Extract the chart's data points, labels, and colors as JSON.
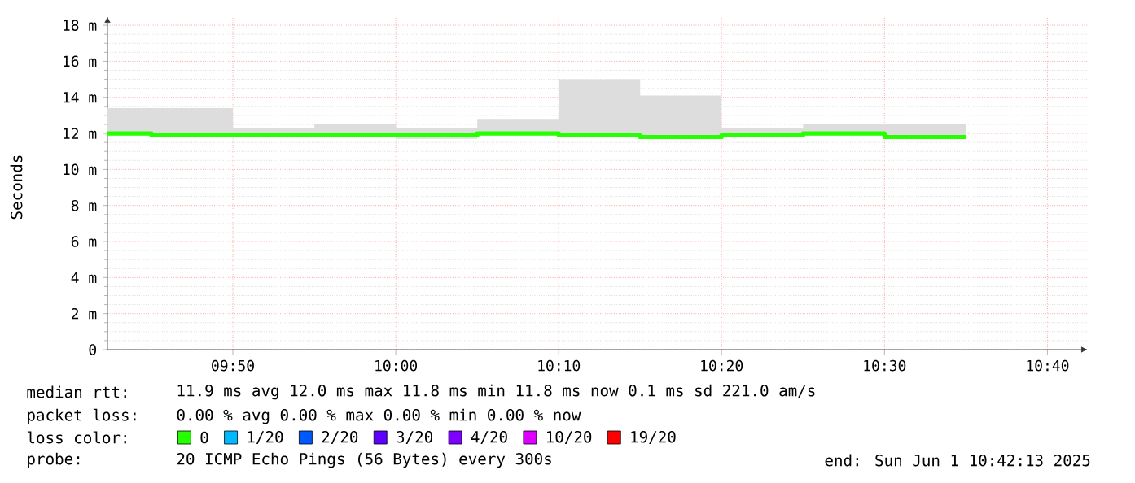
{
  "chart_data": {
    "type": "step",
    "ylabel": "Seconds",
    "x": [
      9.705,
      9.75,
      9.8333,
      9.9167,
      10.0,
      10.0833,
      10.1667,
      10.25,
      10.3333,
      10.4167,
      10.5,
      10.5833
    ],
    "xlim": [
      9.705,
      10.708
    ],
    "xticks": [
      {
        "value": 9.8333,
        "label": "09:50"
      },
      {
        "value": 10.0,
        "label": "10:00"
      },
      {
        "value": 10.1667,
        "label": "10:10"
      },
      {
        "value": 10.3333,
        "label": "10:20"
      },
      {
        "value": 10.5,
        "label": "10:30"
      },
      {
        "value": 10.6667,
        "label": "10:40"
      }
    ],
    "ylim": [
      0,
      18.5
    ],
    "yticks": [
      0,
      {
        "value": 2,
        "label": "2 m"
      },
      {
        "value": 4,
        "label": "4 m"
      },
      {
        "value": 6,
        "label": "6 m"
      },
      {
        "value": 8,
        "label": "8 m"
      },
      {
        "value": 10,
        "label": "10 m"
      },
      {
        "value": 12,
        "label": "12 m"
      },
      {
        "value": 14,
        "label": "14 m"
      },
      {
        "value": 16,
        "label": "16 m"
      },
      {
        "value": 18,
        "label": "18 m"
      }
    ],
    "grid": true,
    "legend": "bottom",
    "legend_title": "loss color:",
    "series": [
      {
        "name": "0",
        "color": "#26ff00",
        "values": [
          12.0,
          11.9,
          11.9,
          11.9,
          11.9,
          12.0,
          11.9,
          11.8,
          11.9,
          12.0,
          11.8,
          11.8
        ],
        "lower": [
          11.9,
          11.9,
          11.8,
          11.8,
          11.7,
          11.9,
          11.8,
          11.7,
          11.8,
          11.9,
          11.7,
          11.7
        ],
        "upper": [
          13.4,
          13.4,
          12.3,
          12.5,
          12.3,
          12.8,
          15.0,
          14.1,
          12.3,
          12.5,
          12.5,
          12.5
        ]
      },
      {
        "name": "1/20",
        "color": "#00b8ff",
        "values": [
          null,
          null,
          null,
          null,
          null,
          null,
          null,
          null,
          null,
          null,
          null,
          null
        ]
      },
      {
        "name": "2/20",
        "color": "#0059ff",
        "values": [
          null,
          null,
          null,
          null,
          null,
          null,
          null,
          null,
          null,
          null,
          null,
          null
        ]
      },
      {
        "name": "3/20",
        "color": "#5e00ff",
        "values": [
          null,
          null,
          null,
          null,
          null,
          null,
          null,
          null,
          null,
          null,
          null,
          null
        ]
      },
      {
        "name": "4/20",
        "color": "#7e00ff",
        "values": [
          null,
          null,
          null,
          null,
          null,
          null,
          null,
          null,
          null,
          null,
          null,
          null
        ]
      },
      {
        "name": "10/20",
        "color": "#dd00ff",
        "values": [
          null,
          null,
          null,
          null,
          null,
          null,
          null,
          null,
          null,
          null,
          null,
          null
        ]
      },
      {
        "name": "19/20",
        "color": "#ff0000",
        "values": [
          null,
          null,
          null,
          null,
          null,
          null,
          null,
          null,
          null,
          null,
          null,
          null
        ]
      }
    ],
    "annotations": [
      "median rtt:",
      "11.9 ms avg  12.0 ms max  11.8 ms min  11.8 ms now  0.1 ms sd  221.0   am/s",
      "packet loss:",
      "0.00 % avg  0.00 % max  0.00 % min  0.00 % now",
      "probe:",
      "20 ICMP Echo Pings (56 Bytes) every 300s",
      "end: Sun Jun  1 10:42:13 2025"
    ]
  }
}
